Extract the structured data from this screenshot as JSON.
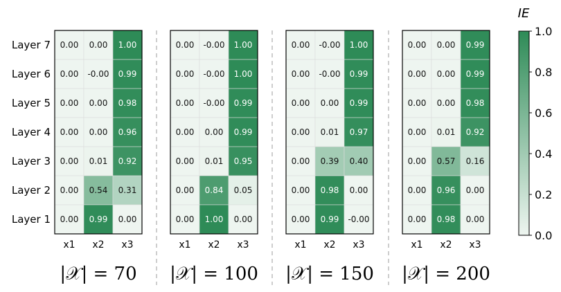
{
  "chart_data": {
    "type": "heatmap",
    "rows": [
      "Layer 7",
      "Layer 6",
      "Layer 5",
      "Layer 4",
      "Layer 3",
      "Layer 2",
      "Layer 1"
    ],
    "columns": [
      "x1",
      "x2",
      "x3"
    ],
    "colorbar": {
      "title": "IE",
      "range": [
        0.0,
        1.0
      ],
      "ticks": [
        "0.0",
        "0.2",
        "0.4",
        "0.6",
        "0.8",
        "1.0"
      ],
      "color_low": "#eef5f0",
      "color_high": "#2e8b57"
    },
    "panels": [
      {
        "title": "|𝒳| = 70",
        "cells": [
          [
            "0.00",
            "0.00",
            "1.00"
          ],
          [
            "0.00",
            "-0.00",
            "0.99"
          ],
          [
            "0.00",
            "0.00",
            "0.98"
          ],
          [
            "0.00",
            "0.00",
            "0.96"
          ],
          [
            "0.00",
            "0.01",
            "0.92"
          ],
          [
            "0.00",
            "0.54",
            "0.31"
          ],
          [
            "0.00",
            "0.99",
            "0.00"
          ]
        ]
      },
      {
        "title": "|𝒳| = 100",
        "cells": [
          [
            "0.00",
            "-0.00",
            "1.00"
          ],
          [
            "0.00",
            "-0.00",
            "1.00"
          ],
          [
            "0.00",
            "-0.00",
            "0.99"
          ],
          [
            "0.00",
            "0.00",
            "0.99"
          ],
          [
            "0.00",
            "0.01",
            "0.95"
          ],
          [
            "0.00",
            "0.84",
            "0.05"
          ],
          [
            "0.00",
            "1.00",
            "0.00"
          ]
        ]
      },
      {
        "title": "|𝒳| = 150",
        "cells": [
          [
            "0.00",
            "-0.00",
            "1.00"
          ],
          [
            "0.00",
            "-0.00",
            "0.99"
          ],
          [
            "0.00",
            "0.00",
            "0.99"
          ],
          [
            "0.00",
            "0.01",
            "0.97"
          ],
          [
            "0.00",
            "0.39",
            "0.40"
          ],
          [
            "0.00",
            "0.98",
            "0.00"
          ],
          [
            "0.00",
            "0.99",
            "-0.00"
          ]
        ]
      },
      {
        "title": "|𝒳| = 200",
        "cells": [
          [
            "0.00",
            "0.00",
            "0.99"
          ],
          [
            "0.00",
            "0.00",
            "0.99"
          ],
          [
            "0.00",
            "0.00",
            "0.98"
          ],
          [
            "0.00",
            "0.01",
            "0.92"
          ],
          [
            "0.00",
            "0.57",
            "0.16"
          ],
          [
            "0.00",
            "0.96",
            "0.00"
          ],
          [
            "0.00",
            "0.98",
            "0.00"
          ]
        ]
      }
    ]
  }
}
